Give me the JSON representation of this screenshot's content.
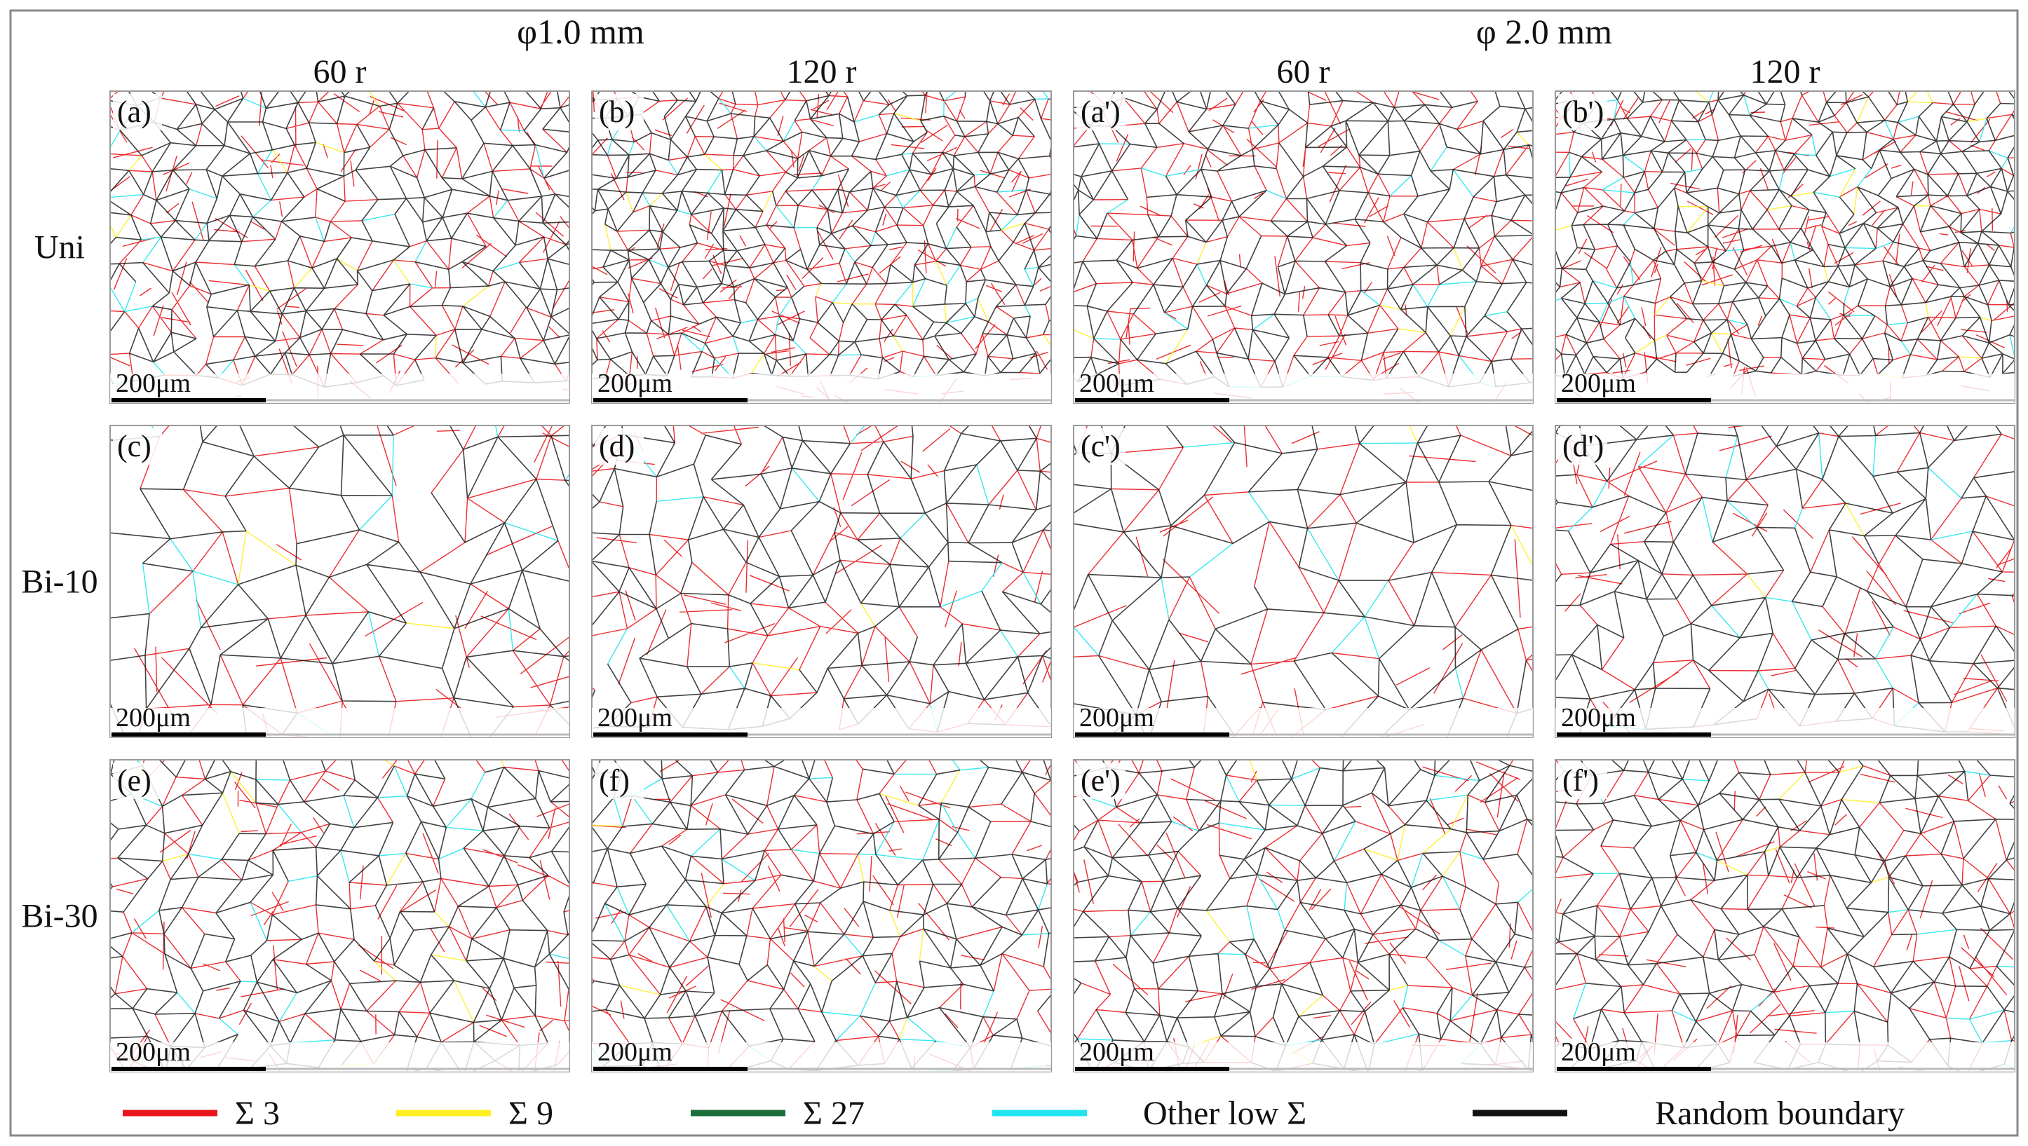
{
  "groups": [
    {
      "label": "φ1.0 mm",
      "columns": [
        "60 r",
        "120 r"
      ]
    },
    {
      "label": "φ 2.0 mm",
      "columns": [
        "60 r",
        "120 r"
      ]
    }
  ],
  "rows": [
    "Uni",
    "Bi-10",
    "Bi-30"
  ],
  "panels": [
    [
      "(a)",
      "(b)",
      "(a')",
      "(b')"
    ],
    [
      "(c)",
      "(d)",
      "(c')",
      "(d')"
    ],
    [
      "(e)",
      "(f)",
      "(e')",
      "(f')"
    ]
  ],
  "scale_bar": "200μm",
  "legend": [
    {
      "label": "Σ 3",
      "color": "#e8161b"
    },
    {
      "label": "Σ 9",
      "color": "#ffee22"
    },
    {
      "label": "Σ 27",
      "color": "#1a6e3a"
    },
    {
      "label": "Other low Σ",
      "color": "#22e4f0"
    },
    {
      "label": "Random boundary",
      "color": "#111111"
    }
  ]
}
